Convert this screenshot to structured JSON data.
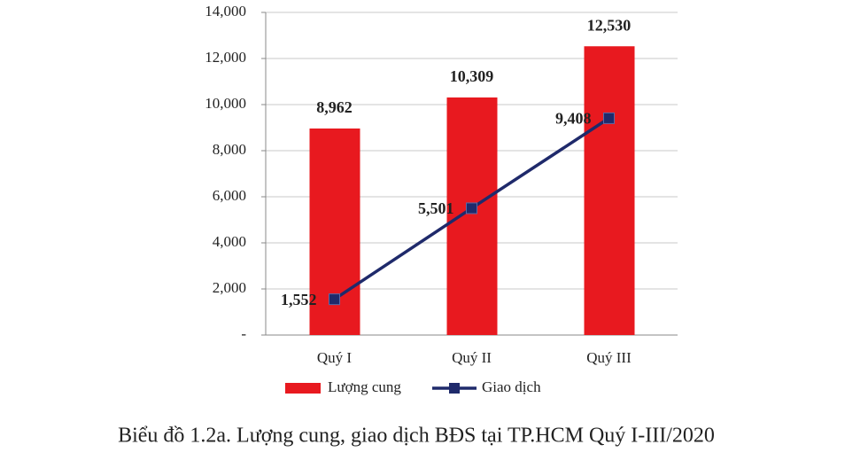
{
  "chart_data": {
    "type": "combo",
    "caption": "Biểu đồ 1.2a. Lượng cung, giao dịch BĐS tại TP.HCM Quý I-III/2020",
    "categories": [
      "Quý I",
      "Quý II",
      "Quý III"
    ],
    "series": [
      {
        "name": "Lượng cung",
        "type": "bar",
        "color": "#e8191f",
        "values": [
          8962,
          10309,
          12530
        ],
        "value_labels": [
          "8,962",
          "10,309",
          "12,530"
        ]
      },
      {
        "name": "Giao dịch",
        "type": "line",
        "color": "#1f2a6b",
        "values": [
          1552,
          5501,
          9408
        ],
        "value_labels": [
          "1,552",
          "5,501",
          "9,408"
        ]
      }
    ],
    "ylim": [
      0,
      14000
    ],
    "yticks": [
      {
        "value": 0,
        "label": "-"
      },
      {
        "value": 2000,
        "label": "2,000"
      },
      {
        "value": 4000,
        "label": "4,000"
      },
      {
        "value": 6000,
        "label": "6,000"
      },
      {
        "value": 8000,
        "label": "8,000"
      },
      {
        "value": 10000,
        "label": "10,000"
      },
      {
        "value": 12000,
        "label": "12,000"
      },
      {
        "value": 14000,
        "label": "14,000"
      }
    ],
    "grid": true
  }
}
